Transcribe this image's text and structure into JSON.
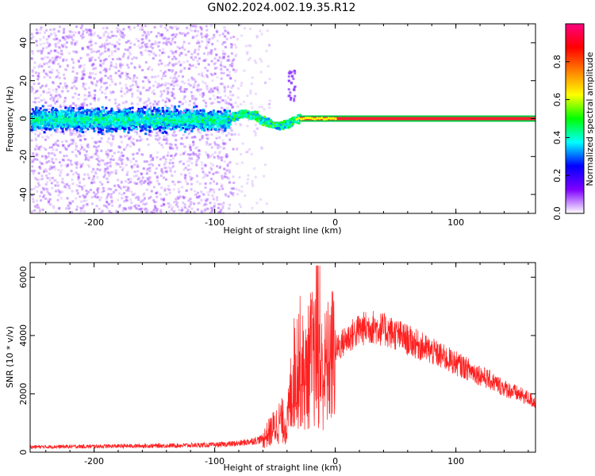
{
  "title": "GN02.2024.002.19.35.R12",
  "chart_data": [
    {
      "type": "heatmap",
      "xlabel": "Height of straight line (km)",
      "ylabel": "Frequency (Hz)",
      "xlim": [
        -253,
        166
      ],
      "ylim": [
        -50,
        50
      ],
      "xticks": [
        -200,
        -100,
        0,
        100
      ],
      "yticks": [
        -40,
        -20,
        0,
        20,
        40
      ],
      "colorbar": {
        "label": "Normalized spectral amplitude",
        "range": [
          0,
          1
        ],
        "ticks": [
          "0.0",
          "0.2",
          "0.4",
          "0.6",
          "0.8"
        ],
        "colors": [
          "#ffffff",
          "#8000ff",
          "#0000ff",
          "#00ffff",
          "#00ff00",
          "#ffff00",
          "#ff8000",
          "#ff0000",
          "#ff0080"
        ]
      },
      "features": {
        "noise_region_x": [
          -253,
          -85
        ],
        "transition_x": [
          -90,
          -30
        ],
        "carrier_line_x": [
          -30,
          166
        ],
        "carrier_frequency": 0
      }
    },
    {
      "type": "line",
      "xlabel": "Height of straight line (km)",
      "ylabel": "SNR (10 * v/v)",
      "xlim": [
        -253,
        166
      ],
      "ylim": [
        0,
        6500
      ],
      "xticks": [
        -200,
        -100,
        0,
        100
      ],
      "yticks": [
        0,
        2000,
        4000,
        6000
      ],
      "series": [
        {
          "color": "#ff2020",
          "x": [
            -253,
            -200,
            -150,
            -100,
            -80,
            -60,
            -45,
            -40,
            -35,
            -30,
            -25,
            -20,
            -15,
            -10,
            0,
            10,
            20,
            30,
            40,
            50,
            60,
            80,
            100,
            120,
            140,
            160,
            166
          ],
          "y": [
            180,
            200,
            220,
            250,
            300,
            450,
            1100,
            900,
            2600,
            3200,
            2500,
            3300,
            2900,
            2700,
            3500,
            3900,
            4200,
            4300,
            4200,
            4050,
            3850,
            3450,
            3050,
            2650,
            2200,
            1850,
            1700
          ]
        }
      ]
    }
  ]
}
